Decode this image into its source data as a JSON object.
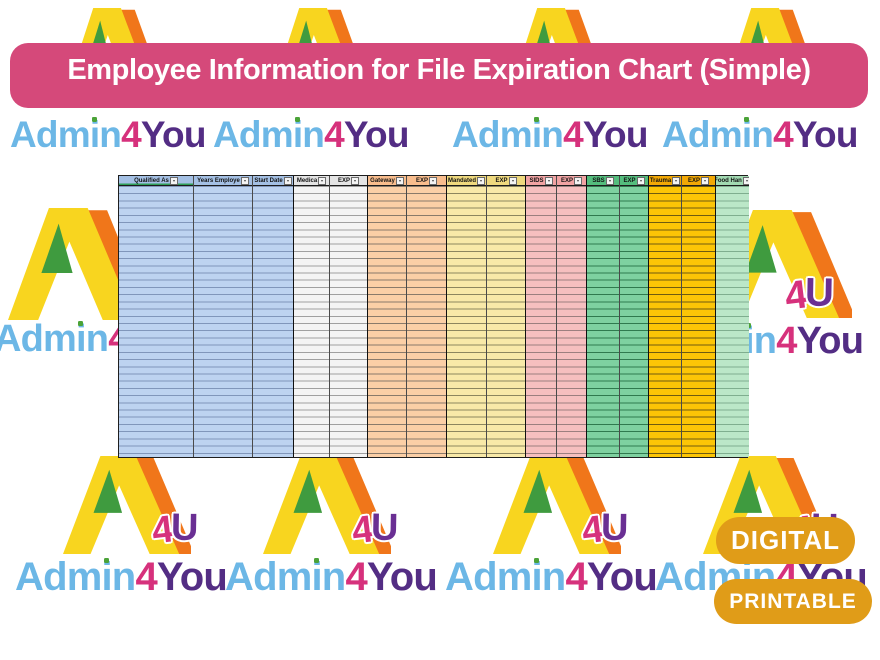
{
  "banner": {
    "title": "Employee Information for File Expiration Chart (Simple)",
    "bg": "#d5497a",
    "text_color": "#ffffff"
  },
  "brand": {
    "admin": "Admin",
    "four": "4",
    "you": "You",
    "u_letter": "U",
    "colors": {
      "admin_blue": "#6cb7e6",
      "four_pink": "#d6317c",
      "you_purple": "#532d84",
      "i_dot_green": "#4ba338",
      "a_yellow": "#f8d51f",
      "a_orange": "#f0761a",
      "a_green": "#3f9b3f",
      "u_purple": "#6a2f93"
    }
  },
  "badges": {
    "digital": "DIGITAL",
    "printable": "PRINTABLE",
    "bg": "#e09c18",
    "text_color": "#ffffff"
  },
  "icons": {
    "filter_dropdown": "triangle-down"
  },
  "table": {
    "rows": 38,
    "columns": [
      {
        "label": "Qualified As",
        "group": "blue"
      },
      {
        "label": "Years Employe",
        "group": "blue"
      },
      {
        "label": "Start Date",
        "group": "blue"
      },
      {
        "label": "Medica",
        "group": "white"
      },
      {
        "label": "EXP",
        "group": "white"
      },
      {
        "label": "Gateway",
        "group": "orange"
      },
      {
        "label": "EXP",
        "group": "orange"
      },
      {
        "label": "Mandated",
        "group": "yellow"
      },
      {
        "label": "EXP",
        "group": "yellow"
      },
      {
        "label": "SIDS",
        "group": "pink"
      },
      {
        "label": "EXP",
        "group": "pink"
      },
      {
        "label": "SBS",
        "group": "green"
      },
      {
        "label": "EXP",
        "group": "green"
      },
      {
        "label": "Trauma",
        "group": "gold"
      },
      {
        "label": "EXP",
        "group": "gold"
      },
      {
        "label": "Food Han",
        "group": "ltgreen"
      }
    ],
    "groups": {
      "blue": {
        "header": "#a4c0e4",
        "body": "#bdd3f0",
        "line": "#8096ba"
      },
      "white": {
        "header": "#e4e4e4",
        "body": "#f4f4f4",
        "line": "#a0a0a0"
      },
      "orange": {
        "header": "#f9bd8d",
        "body": "#fbcfa6",
        "line": "#8a7a6a"
      },
      "yellow": {
        "header": "#efd97e",
        "body": "#f8e9a8",
        "line": "#8c865e"
      },
      "pink": {
        "header": "#f1a3a3",
        "body": "#f6bfbf",
        "line": "#9c7f7f"
      },
      "green": {
        "header": "#54bd7d",
        "body": "#7ed1a0",
        "line": "#2f7a4e"
      },
      "gold": {
        "header": "#f2a805",
        "body": "#fcc506",
        "line": "#6f5c10"
      },
      "ltgreen": {
        "header": "#a2dab2",
        "body": "#bbe7c8",
        "line": "#7fae8f"
      }
    }
  }
}
